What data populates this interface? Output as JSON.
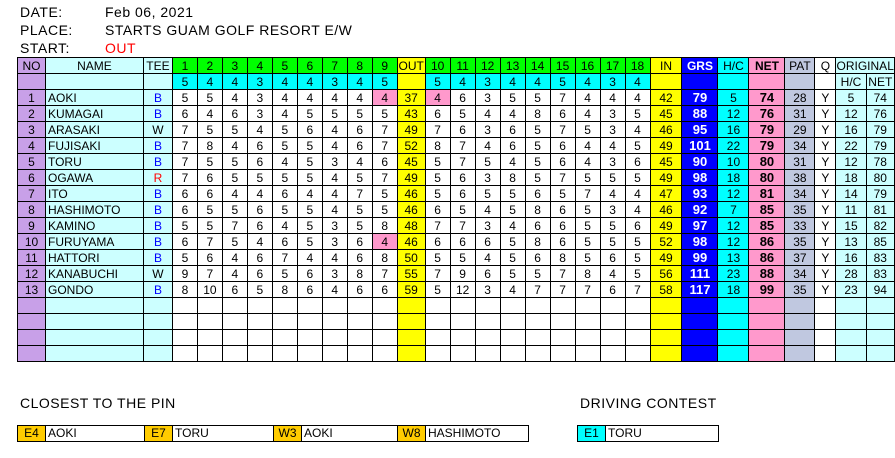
{
  "header": {
    "date_label": "DATE:",
    "date": "Feb 06, 2021",
    "place_label": "PLACE:",
    "place": "STARTS GUAM GOLF RESORT E/W",
    "start_label": "START:",
    "start": "OUT"
  },
  "columns": {
    "no": "NO",
    "name": "NAME",
    "tee": "TEE",
    "holes": [
      "1",
      "2",
      "3",
      "4",
      "5",
      "6",
      "7",
      "8",
      "9",
      "OUT",
      "10",
      "11",
      "12",
      "13",
      "14",
      "15",
      "16",
      "17",
      "18",
      "IN"
    ],
    "grs": "GRS",
    "hc": "H/C",
    "net": "NET",
    "pat": "PAT",
    "q": "Q",
    "original": "ORIGINAL",
    "orig_hc": "H/C",
    "orig_net": "NET"
  },
  "pars": [
    5,
    4,
    4,
    3,
    4,
    4,
    3,
    4,
    5,
    "",
    5,
    4,
    3,
    4,
    4,
    5,
    4,
    3,
    4,
    ""
  ],
  "colors": {
    "tee_B": "#0000ff",
    "tee_R": "#ff0000",
    "tee_W": "#000000",
    "birdie": "#ff99cc"
  },
  "rows": [
    {
      "no": "1",
      "name": "AOKI",
      "tee": "B",
      "scores": [
        5,
        5,
        4,
        3,
        4,
        4,
        4,
        4,
        4,
        37,
        4,
        6,
        3,
        5,
        5,
        7,
        4,
        4,
        4,
        42
      ],
      "birdies": [
        8,
        10
      ],
      "grs": 79,
      "hc": 5,
      "net": 74,
      "pat": 28,
      "q": "Y",
      "orig_hc": 5,
      "orig_net": 74
    },
    {
      "no": "2",
      "name": "KUMAGAI",
      "tee": "B",
      "scores": [
        6,
        4,
        6,
        3,
        4,
        5,
        5,
        5,
        5,
        43,
        6,
        5,
        4,
        4,
        8,
        6,
        4,
        3,
        5,
        45
      ],
      "birdies": [],
      "grs": 88,
      "hc": 12,
      "net": 76,
      "pat": 31,
      "q": "Y",
      "orig_hc": 12,
      "orig_net": 76
    },
    {
      "no": "3",
      "name": "ARASAKI",
      "tee": "W",
      "scores": [
        7,
        5,
        5,
        4,
        5,
        6,
        4,
        6,
        7,
        49,
        7,
        6,
        3,
        6,
        5,
        7,
        5,
        3,
        4,
        46
      ],
      "birdies": [],
      "grs": 95,
      "hc": 16,
      "net": 79,
      "pat": 29,
      "q": "Y",
      "orig_hc": 16,
      "orig_net": 79
    },
    {
      "no": "4",
      "name": "FUJISAKI",
      "tee": "B",
      "scores": [
        7,
        8,
        4,
        6,
        5,
        5,
        4,
        6,
        7,
        52,
        8,
        7,
        4,
        6,
        5,
        6,
        4,
        4,
        5,
        49
      ],
      "birdies": [],
      "grs": 101,
      "hc": 22,
      "net": 79,
      "pat": 34,
      "q": "Y",
      "orig_hc": 22,
      "orig_net": 79
    },
    {
      "no": "5",
      "name": "TORU",
      "tee": "B",
      "scores": [
        7,
        5,
        5,
        6,
        4,
        5,
        3,
        4,
        6,
        45,
        5,
        7,
        5,
        4,
        5,
        6,
        4,
        3,
        6,
        45
      ],
      "birdies": [],
      "grs": 90,
      "hc": 10,
      "net": 80,
      "pat": 31,
      "q": "Y",
      "orig_hc": 12,
      "orig_net": 78
    },
    {
      "no": "6",
      "name": "OGAWA",
      "tee": "R",
      "scores": [
        7,
        6,
        5,
        5,
        5,
        5,
        4,
        5,
        7,
        49,
        5,
        6,
        3,
        8,
        5,
        7,
        5,
        5,
        5,
        49
      ],
      "birdies": [],
      "grs": 98,
      "hc": 18,
      "net": 80,
      "pat": 38,
      "q": "Y",
      "orig_hc": 18,
      "orig_net": 80
    },
    {
      "no": "7",
      "name": "ITO",
      "tee": "B",
      "scores": [
        6,
        6,
        4,
        4,
        6,
        4,
        4,
        7,
        5,
        46,
        5,
        6,
        5,
        5,
        6,
        5,
        7,
        4,
        4,
        47
      ],
      "birdies": [],
      "grs": 93,
      "hc": 12,
      "net": 81,
      "pat": 34,
      "q": "Y",
      "orig_hc": 14,
      "orig_net": 79
    },
    {
      "no": "8",
      "name": "HASHIMOTO",
      "tee": "B",
      "scores": [
        6,
        5,
        5,
        6,
        5,
        5,
        4,
        5,
        5,
        46,
        6,
        5,
        4,
        5,
        8,
        6,
        5,
        3,
        4,
        46
      ],
      "birdies": [],
      "grs": 92,
      "hc": 7,
      "net": 85,
      "pat": 35,
      "q": "Y",
      "orig_hc": 11,
      "orig_net": 81
    },
    {
      "no": "9",
      "name": "KAMINO",
      "tee": "B",
      "scores": [
        5,
        5,
        7,
        6,
        4,
        5,
        3,
        5,
        8,
        48,
        7,
        7,
        3,
        4,
        6,
        6,
        5,
        5,
        6,
        49
      ],
      "birdies": [],
      "grs": 97,
      "hc": 12,
      "net": 85,
      "pat": 33,
      "q": "Y",
      "orig_hc": 15,
      "orig_net": 82
    },
    {
      "no": "10",
      "name": "FURUYAMA",
      "tee": "B",
      "scores": [
        6,
        7,
        5,
        4,
        6,
        5,
        3,
        6,
        4,
        46,
        6,
        6,
        6,
        5,
        8,
        6,
        5,
        5,
        5,
        52
      ],
      "birdies": [
        8
      ],
      "grs": 98,
      "hc": 12,
      "net": 86,
      "pat": 35,
      "q": "Y",
      "orig_hc": 13,
      "orig_net": 85
    },
    {
      "no": "11",
      "name": "HATTORI",
      "tee": "B",
      "scores": [
        5,
        6,
        4,
        6,
        7,
        4,
        4,
        6,
        8,
        50,
        5,
        5,
        4,
        5,
        6,
        8,
        5,
        6,
        5,
        49
      ],
      "birdies": [],
      "grs": 99,
      "hc": 13,
      "net": 86,
      "pat": 37,
      "q": "Y",
      "orig_hc": 16,
      "orig_net": 83
    },
    {
      "no": "12",
      "name": "KANABUCHI",
      "tee": "W",
      "scores": [
        9,
        7,
        4,
        6,
        5,
        6,
        3,
        8,
        7,
        55,
        7,
        9,
        6,
        5,
        5,
        7,
        8,
        4,
        5,
        56
      ],
      "birdies": [],
      "grs": 111,
      "hc": 23,
      "net": 88,
      "pat": 34,
      "q": "Y",
      "orig_hc": 28,
      "orig_net": 83
    },
    {
      "no": "13",
      "name": "GONDO",
      "tee": "B",
      "scores": [
        8,
        10,
        6,
        5,
        8,
        6,
        4,
        6,
        6,
        59,
        5,
        12,
        3,
        4,
        7,
        7,
        7,
        6,
        7,
        58
      ],
      "birdies": [],
      "grs": 117,
      "hc": 18,
      "net": 99,
      "pat": 35,
      "q": "Y",
      "orig_hc": 23,
      "orig_net": 94
    }
  ],
  "closest": {
    "title": "CLOSEST TO THE PIN",
    "items": [
      {
        "hole": "E4",
        "name": "AOKI"
      },
      {
        "hole": "E7",
        "name": "TORU"
      },
      {
        "hole": "W3",
        "name": "AOKI"
      },
      {
        "hole": "W8",
        "name": "HASHIMOTO"
      }
    ]
  },
  "driving": {
    "title": "DRIVING CONTEST",
    "items": [
      {
        "hole": "E1",
        "name": "TORU"
      }
    ]
  }
}
